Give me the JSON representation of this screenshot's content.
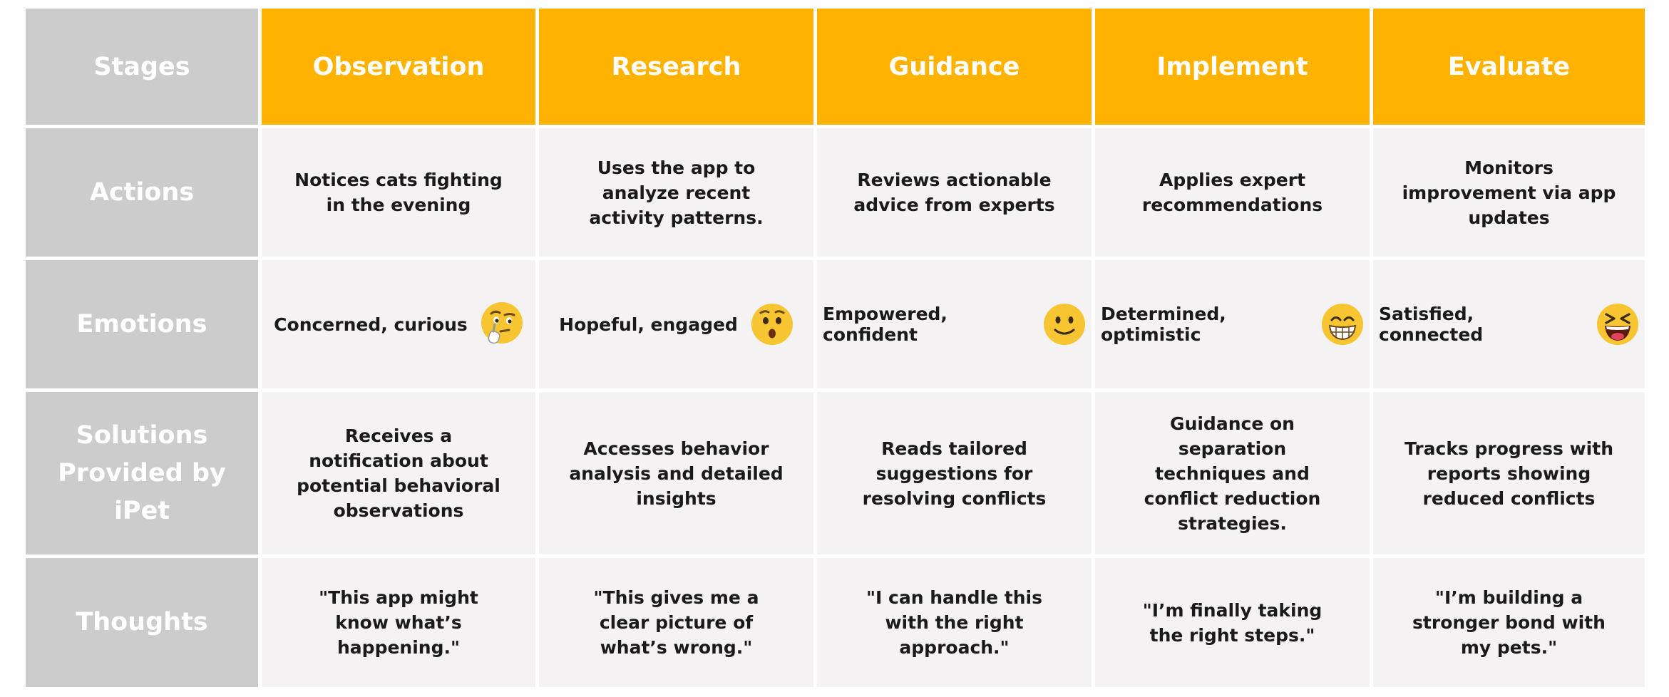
{
  "header": {
    "stage_label": "Stages",
    "stages": [
      "Observation",
      "Research",
      "Guidance",
      "Implement",
      "Evaluate"
    ]
  },
  "rows": {
    "actions": {
      "label": "Actions",
      "cells": [
        "Notices cats fighting in the evening",
        "Uses the app to analyze recent activity patterns.",
        "Reviews actionable advice from experts",
        "Applies expert recommendations",
        "Monitors improvement via app updates"
      ]
    },
    "emotions": {
      "label": "Emotions",
      "cells": [
        {
          "text": "Concerned, curious",
          "icon": "thinking-face-icon"
        },
        {
          "text": "Hopeful, engaged",
          "icon": "hushed-face-icon"
        },
        {
          "text": "Empowered, confident",
          "icon": "slightly-smiling-face-icon"
        },
        {
          "text": "Determined, optimistic",
          "icon": "grinning-face-icon"
        },
        {
          "text": "Satisfied, connected",
          "icon": "laughing-squinting-face-icon"
        }
      ]
    },
    "solutions": {
      "label": "Solutions Provided by iPet",
      "cells": [
        "Receives a notification about potential behavioral observations",
        "Accesses behavior analysis and detailed insights",
        "Reads tailored suggestions for resolving conflicts",
        "Guidance on separation techniques and conflict reduction strategies.",
        "Tracks progress with reports showing reduced conflicts"
      ]
    },
    "thoughts": {
      "label": "Thoughts",
      "cells": [
        "\"This app might know what’s happening.\"",
        "\"This gives me a clear picture of what’s wrong.\"",
        "\"I can handle this with the right approach.\"",
        "\"I’m finally taking the right steps.\"",
        "\"I’m building a stronger bond with my pets.\""
      ]
    }
  },
  "colors": {
    "header_accent": "#ffb300",
    "row_header_bg": "#cccccc",
    "cell_bg": "#f4f2f3",
    "emoji_yellow": "#f7c531"
  }
}
